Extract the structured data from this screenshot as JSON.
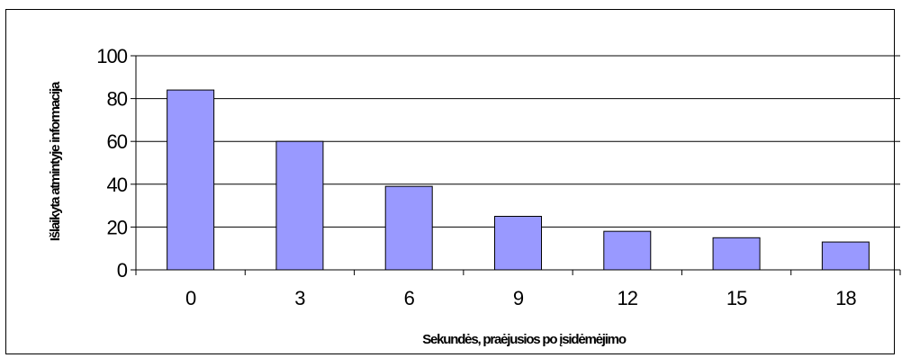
{
  "chart_data": {
    "type": "bar",
    "categories": [
      "0",
      "3",
      "6",
      "9",
      "12",
      "15",
      "18"
    ],
    "values": [
      84,
      60,
      39,
      25,
      18,
      15,
      13
    ],
    "title": "",
    "xlabel": "Sekundės, praėjusios po įsidėmėjimo",
    "ylabel": "Išlaikyta atmintyje informacija",
    "ylim": [
      0,
      100
    ],
    "yticks": [
      0,
      20,
      40,
      60,
      80,
      100
    ],
    "grid": true,
    "legend": "none",
    "bar_color": "#9999ff"
  }
}
